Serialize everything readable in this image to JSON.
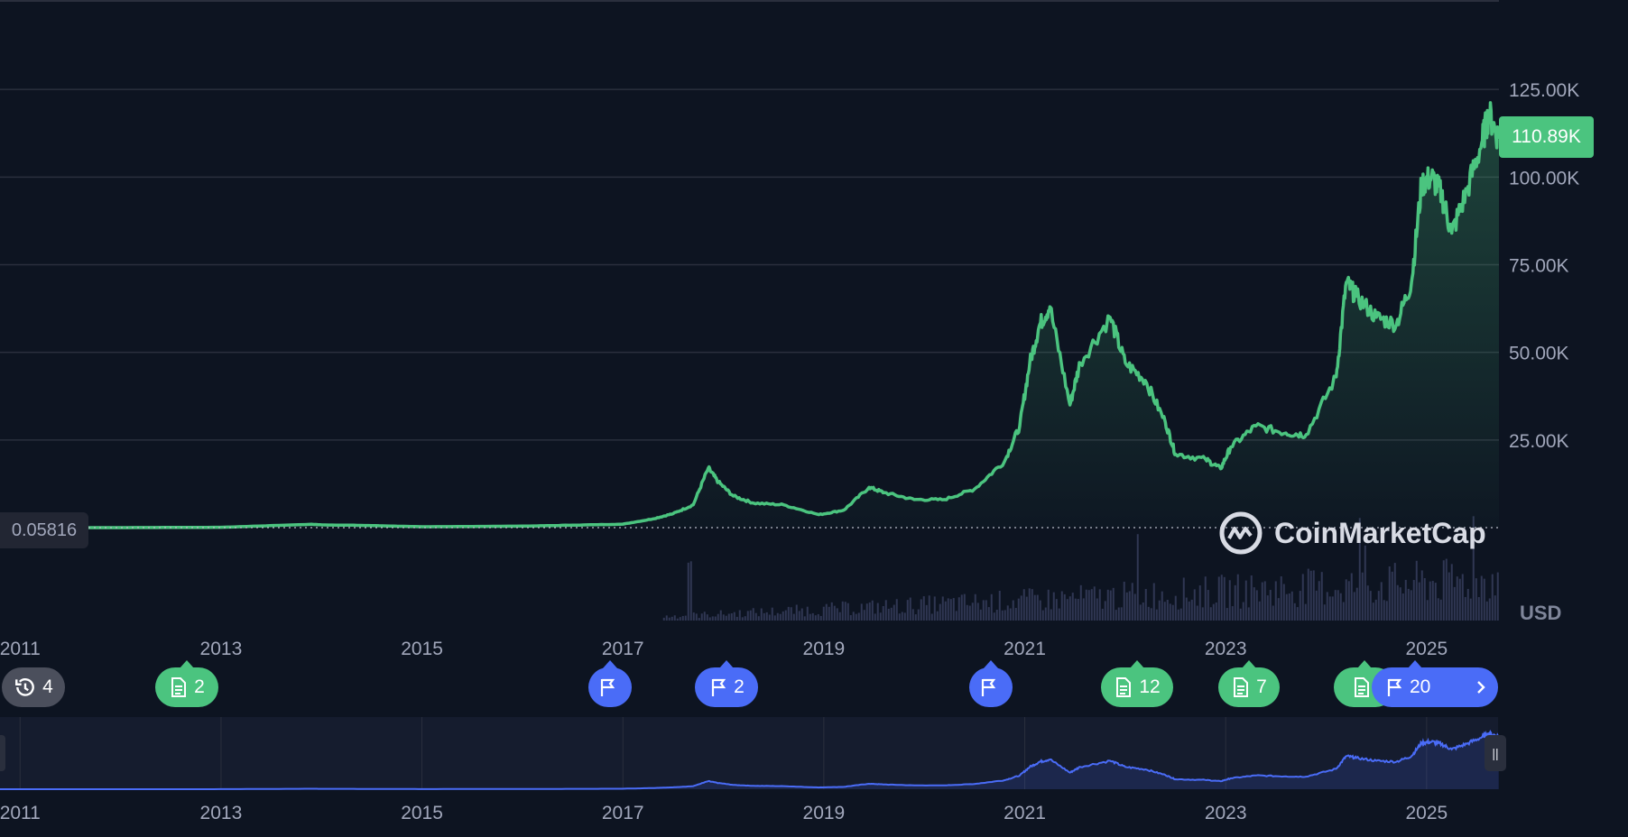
{
  "currency": "USD",
  "current_price_label": "110.89K",
  "low_price_label": "0.05816",
  "watermark": "CoinMarketCap",
  "colors": {
    "background": "#0d1421",
    "line": "#4bc47f",
    "navigator_line": "#4a6cf7",
    "volume": "#3a4060",
    "event_green": "#4bc47f",
    "event_blue": "#4a6cf7"
  },
  "events": [
    {
      "color": "gray",
      "icon": "history-icon",
      "count": "4"
    },
    {
      "color": "green",
      "icon": "document-icon",
      "count": "2"
    },
    {
      "color": "blue",
      "icon": "flag-icon",
      "count": ""
    },
    {
      "color": "blue",
      "icon": "flag-icon",
      "count": "2"
    },
    {
      "color": "blue",
      "icon": "flag-icon",
      "count": ""
    },
    {
      "color": "green",
      "icon": "document-icon",
      "count": "12"
    },
    {
      "color": "green",
      "icon": "document-icon",
      "count": "7"
    },
    {
      "color": "green",
      "icon": "document-icon",
      "count": ""
    },
    {
      "color": "blue",
      "icon": "flag-icon",
      "count": "20"
    }
  ],
  "chart_data": {
    "type": "area",
    "title": "",
    "ylabel": "",
    "xlabel": "",
    "y_ticks": [
      "25.00K",
      "50.00K",
      "75.00K",
      "100.00K",
      "125.00K"
    ],
    "y_tick_values": [
      25000,
      50000,
      75000,
      100000,
      125000
    ],
    "x_ticks": [
      "2011",
      "2013",
      "2015",
      "2017",
      "2019",
      "2021",
      "2023",
      "2025"
    ],
    "x_tick_years": [
      2011,
      2013,
      2015,
      2017,
      2019,
      2021,
      2023,
      2025
    ],
    "ylim": [
      0,
      150000
    ],
    "xlim": [
      2010.8,
      2025.72
    ],
    "grid": true,
    "series": [
      {
        "values_x": [
          2010.8,
          2012.0,
          2013.0,
          2013.9,
          2014.0,
          2014.5,
          2015.0,
          2016.0,
          2016.5,
          2017.0,
          2017.3,
          2017.5,
          2017.7,
          2017.85,
          2017.95,
          2018.1,
          2018.3,
          2018.6,
          2018.95,
          2019.2,
          2019.45,
          2019.6,
          2019.9,
          2020.2,
          2020.5,
          2020.8,
          2020.95,
          2021.05,
          2021.15,
          2021.25,
          2021.45,
          2021.55,
          2021.85,
          2022.0,
          2022.2,
          2022.4,
          2022.5,
          2022.8,
          2022.95,
          2023.05,
          2023.3,
          2023.6,
          2023.8,
          2024.1,
          2024.2,
          2024.3,
          2024.5,
          2024.7,
          2024.85,
          2024.95,
          2025.05,
          2025.15,
          2025.25,
          2025.4,
          2025.55,
          2025.62,
          2025.72
        ],
        "values_y": [
          1,
          5,
          100,
          950,
          800,
          600,
          250,
          430,
          700,
          1000,
          2500,
          4000,
          6500,
          17000,
          13000,
          9000,
          7000,
          6500,
          3700,
          5000,
          11500,
          10000,
          8000,
          8000,
          11000,
          19000,
          29000,
          47000,
          58000,
          63000,
          35000,
          47000,
          60000,
          47000,
          42000,
          30000,
          21000,
          19500,
          16800,
          23000,
          29000,
          27000,
          26500,
          43000,
          70000,
          66000,
          60000,
          58000,
          70000,
          98000,
          100000,
          95000,
          84000,
          96000,
          110000,
          118000,
          110890
        ],
        "name": ""
      }
    ]
  }
}
